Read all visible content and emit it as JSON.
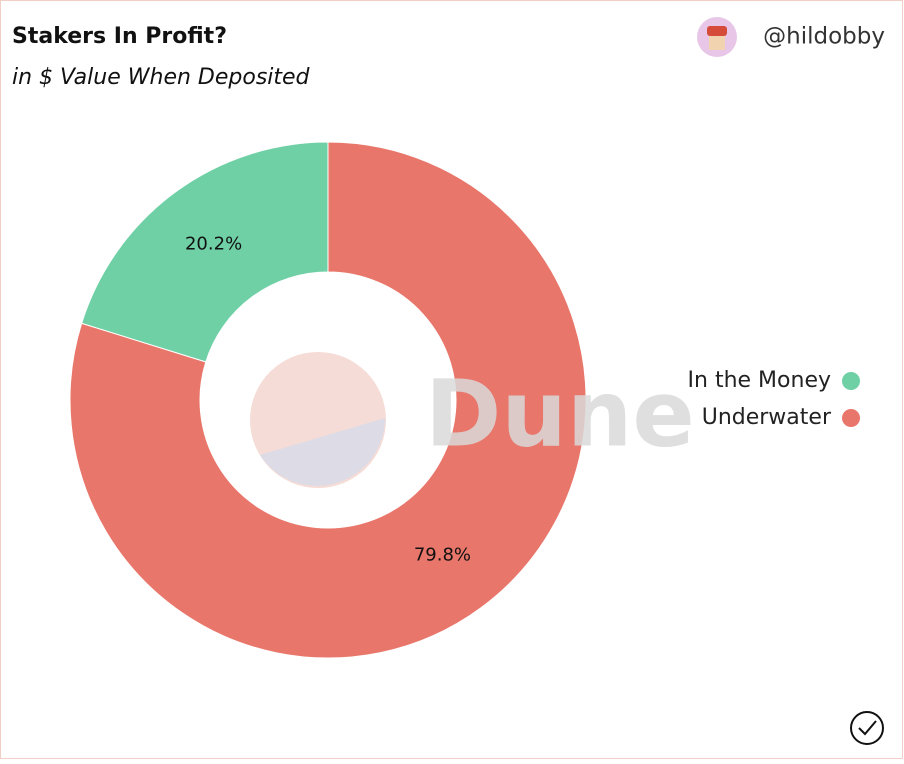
{
  "header": {
    "author": "@hildobby"
  },
  "chart_data": {
    "type": "pie",
    "title": "Stakers In Profit?",
    "subtitle": "in $ Value When Deposited",
    "categories": [
      "In the Money",
      "Underwater"
    ],
    "values": [
      20.2,
      79.8
    ],
    "value_labels": [
      "20.2%",
      "79.8%"
    ],
    "colors": [
      "#6fd0a6",
      "#e9766a"
    ],
    "donut": true,
    "legend": "right",
    "watermark": "Dune"
  }
}
